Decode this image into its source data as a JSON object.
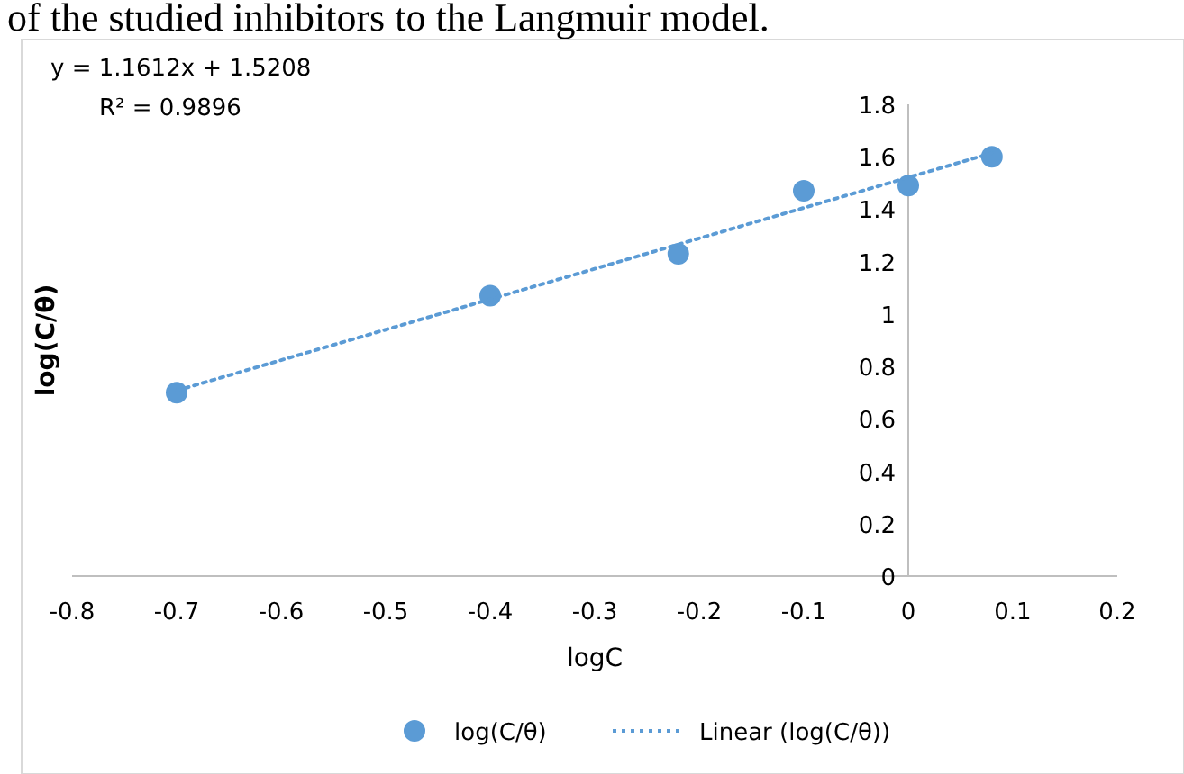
{
  "chart_data": {
    "type": "scatter",
    "xlabel": "logC",
    "ylabel": "log(C/θ)",
    "annotations": [
      "of the studied inhibitors to the Langmuir model.",
      "y = 1.1612x + 1.5208",
      "R² = 0.9896"
    ],
    "series": [
      {
        "name": "log(C/θ)",
        "color": "#5b9bd5",
        "marker": "circle",
        "x": [
          -0.7,
          -0.4,
          -0.22,
          -0.1,
          0,
          0.08
        ],
        "values": [
          0.7,
          1.07,
          1.23,
          1.47,
          1.49,
          1.6
        ]
      },
      {
        "name": "Linear (log(C/θ))",
        "type": "line",
        "color": "#5b9bd5",
        "line_style": "dotted",
        "marker": "none",
        "x": [
          -0.7,
          0.08
        ],
        "values": [
          0.708,
          1.614
        ]
      }
    ],
    "xlim": [
      -0.8,
      0.2
    ],
    "xticks": [
      -0.8,
      -0.7,
      -0.6,
      -0.5,
      -0.4,
      -0.3,
      -0.2,
      -0.1,
      0,
      0.1,
      0.2
    ],
    "ylim": [
      0,
      1.8
    ],
    "yticks": [
      0,
      0.2,
      0.4,
      0.6,
      0.8,
      1,
      1.2,
      1.4,
      1.6,
      1.8
    ],
    "grid": false,
    "legend": "bottom"
  }
}
